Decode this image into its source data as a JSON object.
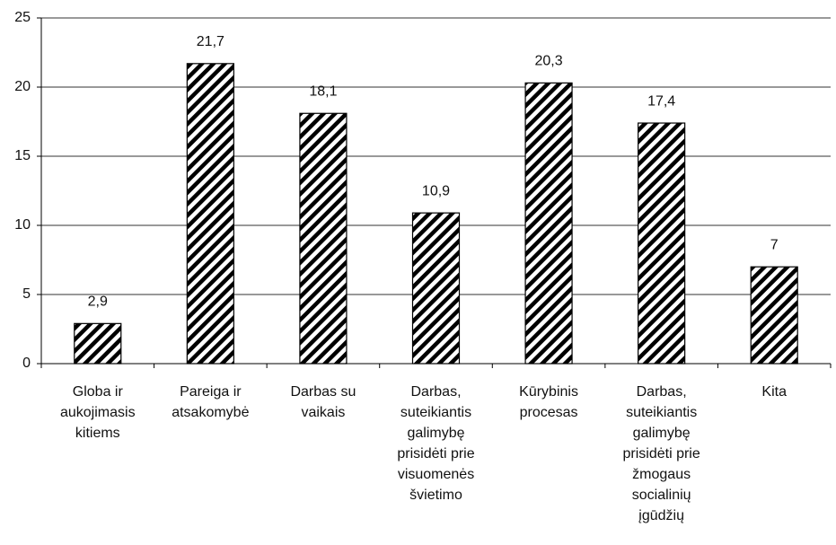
{
  "chart_data": {
    "type": "bar",
    "categories": [
      "Globa ir aukojimasis kitiems",
      "Pareiga ir atsakomybė",
      "Darbas su vaikais",
      "Darbas, suteikiantis galimybę prisidėti prie visuomenės švietimo",
      "Kūrybinis procesas",
      "Darbas, suteikiantis galimybę prisidėti prie žmogaus socialinių įgūdžių",
      "Kita"
    ],
    "values": [
      2.9,
      21.7,
      18.1,
      10.9,
      20.3,
      17.4,
      7
    ],
    "value_labels": [
      "2,9",
      "21,7",
      "18,1",
      "10,9",
      "20,3",
      "17,4",
      "7"
    ],
    "color": "#000000",
    "ylim": [
      0,
      25
    ],
    "yticks": [
      0,
      5,
      10,
      15,
      20,
      25
    ],
    "grid": true
  }
}
